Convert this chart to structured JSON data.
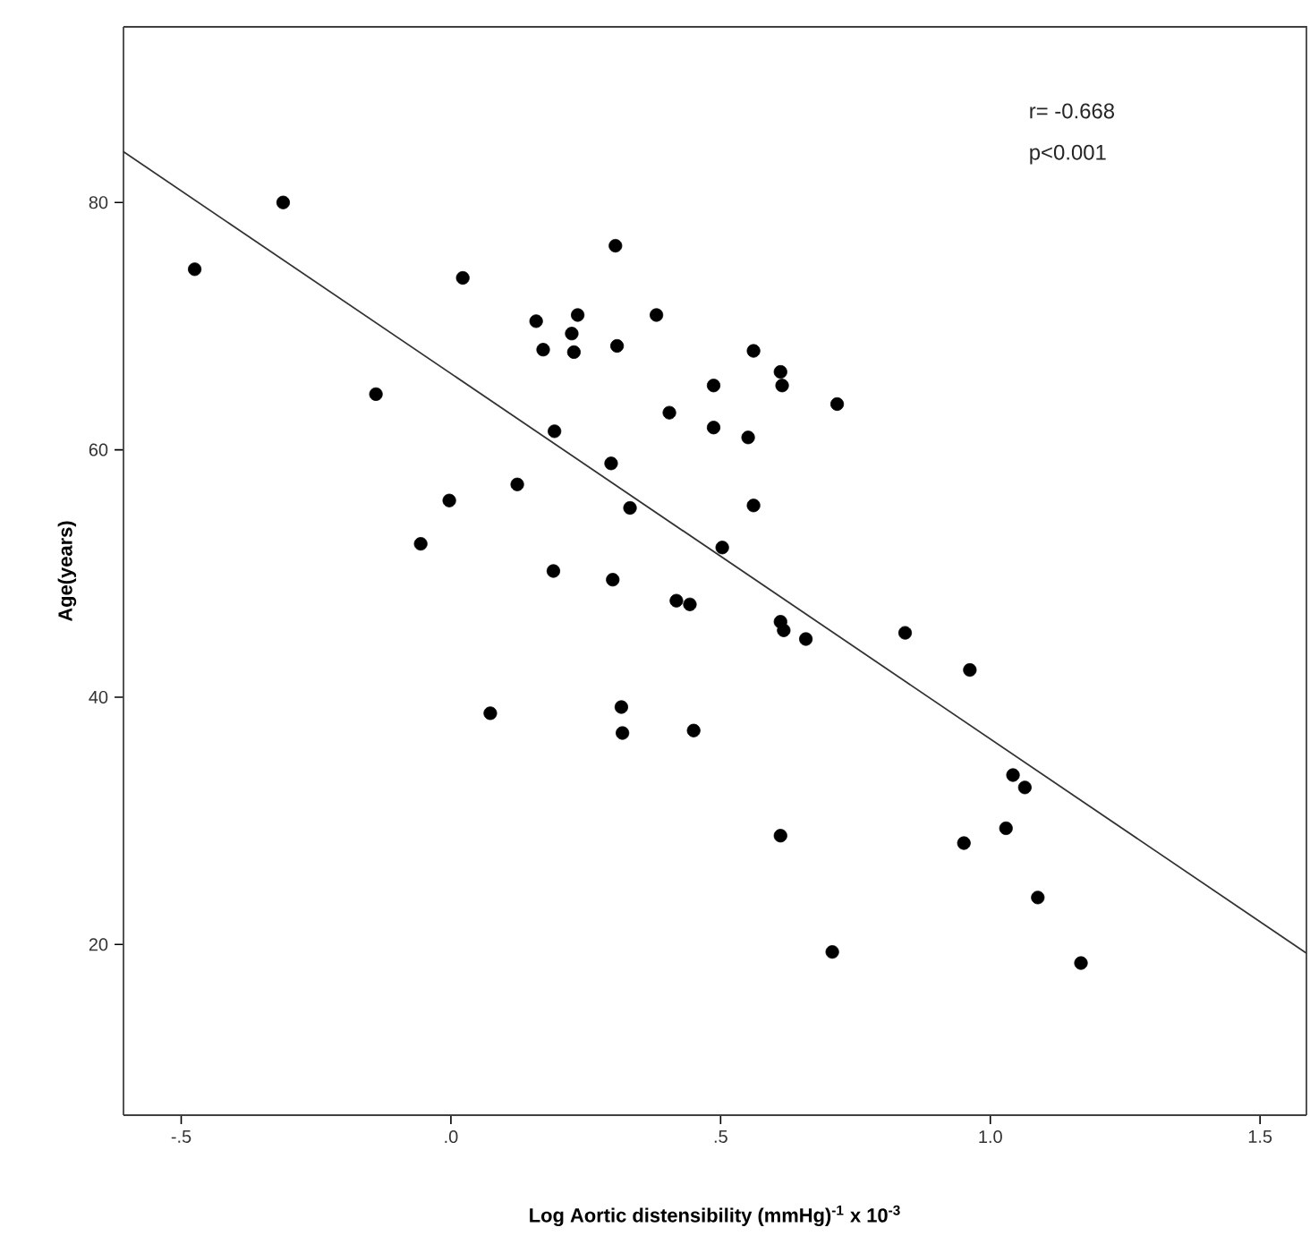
{
  "chart_data": {
    "type": "scatter",
    "xlabel": "Log Aortic distensibility  (mmHg)$^{-1}$ x 10$^{-3}$",
    "ylabel": "Age(years)",
    "annotations": [
      "r= -0.668",
      "p<0.001"
    ],
    "xlim": [
      -0.607,
      1.586
    ],
    "ylim": [
      6.2,
      94.2
    ],
    "xticks": [
      {
        "value": -0.5,
        "label": "-.5"
      },
      {
        "value": 0,
        "label": ".0"
      },
      {
        "value": 0.5,
        "label": ".5"
      },
      {
        "value": 1.0,
        "label": "1.0"
      },
      {
        "value": 1.5,
        "label": "1.5"
      }
    ],
    "yticks": [
      20,
      40,
      60,
      80
    ],
    "series": [
      {
        "color": "#000000",
        "marker": "circle",
        "x": [
          -0.475,
          -0.311,
          -0.139,
          0.022,
          0.158,
          0.235,
          0.224,
          0.171,
          0.228,
          0.305,
          0.308,
          0.381,
          0.405,
          0.487,
          0.487,
          0.192,
          0.297,
          0.123,
          0.332,
          -0.003,
          -0.056,
          0.19,
          0.3,
          0.418,
          0.443,
          0.561,
          0.611,
          0.614,
          0.716,
          0.551,
          0.561,
          0.503,
          0.611,
          0.617,
          0.658,
          0.842,
          0.962,
          0.316,
          0.318,
          0.45,
          0.073,
          1.042,
          1.064,
          1.029,
          0.951,
          0.611,
          1.088,
          0.707,
          1.168
        ],
        "values": [
          74.6,
          80.0,
          64.5,
          73.9,
          70.4,
          70.9,
          69.4,
          68.1,
          67.9,
          76.5,
          68.4,
          70.9,
          63.0,
          65.2,
          61.8,
          61.5,
          58.9,
          57.2,
          55.3,
          55.9,
          52.4,
          50.2,
          49.5,
          47.8,
          47.5,
          68.0,
          66.3,
          65.2,
          63.7,
          61.0,
          55.5,
          52.1,
          46.1,
          45.4,
          44.7,
          45.2,
          42.2,
          39.2,
          37.1,
          37.3,
          38.7,
          33.7,
          32.7,
          29.4,
          28.2,
          28.8,
          23.8,
          19.4,
          18.5
        ]
      },
      {
        "type": "line",
        "color": "#333333",
        "marker": "none",
        "line_style": "solid",
        "x": [
          -0.607,
          1.586
        ],
        "values": [
          84.1,
          19.3
        ]
      }
    ]
  }
}
